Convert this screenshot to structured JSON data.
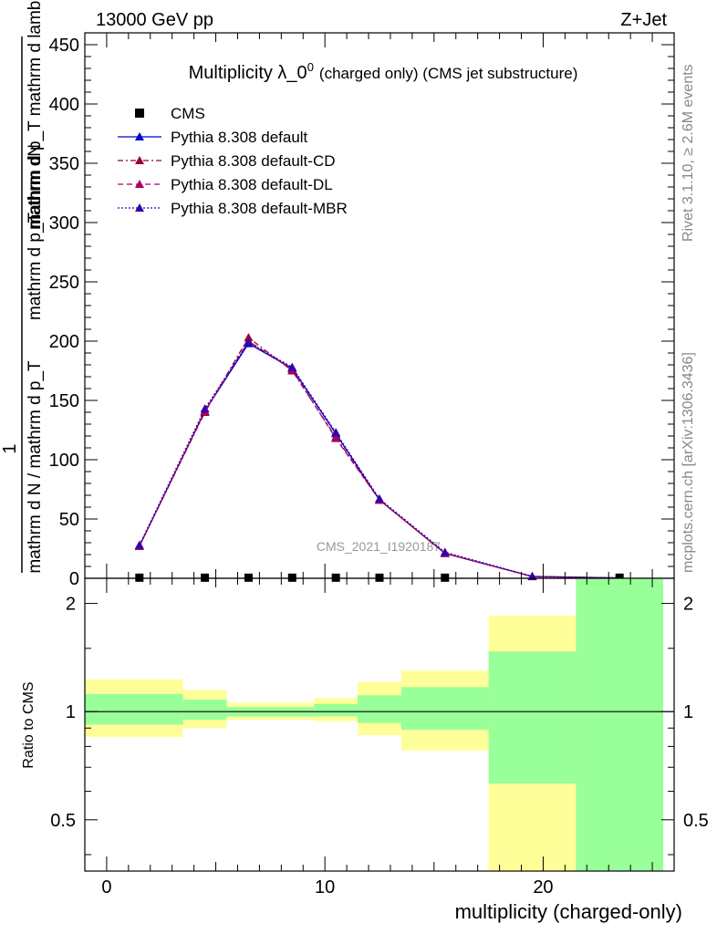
{
  "header": {
    "energy_label": "13000 GeV pp",
    "process_label": "Z+Jet",
    "rivet_label": "Rivet 3.1.10, ≥ 2.6M events",
    "mcplots_label": "mcplots.cern.ch [arXiv:1306.3436]",
    "analysis_watermark": "CMS_2021_I1920187"
  },
  "chart_data": [
    {
      "type": "line",
      "title": "Multiplicity λ_0",
      "title_sup": "0",
      "title_suffix": "(charged only) (CMS jet substructure)",
      "ylabel_top": "1",
      "ylabel_frac_line1_num": "mathrm dN",
      "ylabel_frac_line2_num": "mathrm d p_T mathrm d lambda",
      "ylabel_frac_line1_den": "mathrm d N / mathrm d p_T",
      "ylabel_frac_line2_den": "mathrm d p_T",
      "ylim": [
        0,
        460
      ],
      "xlim": [
        -1,
        26
      ],
      "yticks": [
        0,
        50,
        100,
        150,
        200,
        250,
        300,
        350,
        400,
        450
      ],
      "grid": false,
      "legend_position": "top-left",
      "bins": [
        [
          -1,
          3.5
        ],
        [
          3.5,
          5.5
        ],
        [
          5.5,
          7.5
        ],
        [
          7.5,
          9.5
        ],
        [
          9.5,
          11.5
        ],
        [
          11.5,
          13.5
        ],
        [
          13.5,
          17.5
        ],
        [
          17.5,
          21.5
        ],
        [
          21.5,
          25.5
        ]
      ],
      "x_markers": [
        1.5,
        4.5,
        6.5,
        8.5,
        10.5,
        12.5,
        15.5,
        19.5,
        23.5
      ],
      "series": [
        {
          "name": "CMS",
          "color": "#000000",
          "style": "marker-square",
          "values": [
            0.5,
            0.5,
            0.5,
            0.5,
            0.5,
            0.5,
            0.5,
            0.0,
            0.5
          ]
        },
        {
          "name": "Pythia 8.308 default",
          "color": "#0000cc",
          "style": "solid",
          "values": [
            27,
            141,
            198,
            177,
            122,
            66,
            21,
            1.5,
            0.3
          ]
        },
        {
          "name": "Pythia 8.308 default-CD",
          "color": "#990033",
          "style": "dashdot",
          "values": [
            27,
            140,
            203,
            175,
            119,
            66,
            21,
            1.4,
            0.3
          ]
        },
        {
          "name": "Pythia 8.308 default-DL",
          "color": "#aa0066",
          "style": "dashed",
          "values": [
            27,
            141,
            200,
            176,
            118,
            66,
            21,
            1.5,
            0.3
          ]
        },
        {
          "name": "Pythia 8.308 default-MBR",
          "color": "#3300aa",
          "style": "dotted",
          "values": [
            28,
            143,
            199,
            178,
            123,
            67,
            22,
            1.6,
            0.3
          ]
        }
      ]
    },
    {
      "type": "area",
      "ylabel": "Ratio to CMS",
      "xlabel": "multiplicity (charged-only)",
      "ylim": [
        0.36,
        2.35
      ],
      "log_scale": true,
      "yticks": [
        0.5,
        1,
        2
      ],
      "xticks": [
        0,
        10,
        20
      ],
      "colors": {
        "stat_band": "#99ff99",
        "syst_band": "#ffff99"
      },
      "bands": [
        {
          "x": [
            -1,
            3.5
          ],
          "yellow": [
            0.85,
            1.23
          ],
          "green": [
            0.92,
            1.12
          ]
        },
        {
          "x": [
            3.5,
            5.5
          ],
          "yellow": [
            0.9,
            1.15
          ],
          "green": [
            0.95,
            1.08
          ]
        },
        {
          "x": [
            5.5,
            7.5
          ],
          "yellow": [
            0.95,
            1.06
          ],
          "green": [
            0.97,
            1.03
          ]
        },
        {
          "x": [
            7.5,
            9.5
          ],
          "yellow": [
            0.95,
            1.06
          ],
          "green": [
            0.97,
            1.03
          ]
        },
        {
          "x": [
            9.5,
            11.5
          ],
          "yellow": [
            0.94,
            1.09
          ],
          "green": [
            0.97,
            1.05
          ]
        },
        {
          "x": [
            11.5,
            13.5
          ],
          "yellow": [
            0.86,
            1.21
          ],
          "green": [
            0.93,
            1.11
          ]
        },
        {
          "x": [
            13.5,
            17.5
          ],
          "yellow": [
            0.78,
            1.3
          ],
          "green": [
            0.89,
            1.17
          ]
        },
        {
          "x": [
            17.5,
            21.5
          ],
          "yellow": [
            0.36,
            1.85
          ],
          "green": [
            0.63,
            1.47
          ]
        },
        {
          "x": [
            21.5,
            25.5
          ],
          "yellow": [
            0.36,
            2.35
          ],
          "green": [
            0.36,
            2.35
          ]
        }
      ]
    }
  ]
}
